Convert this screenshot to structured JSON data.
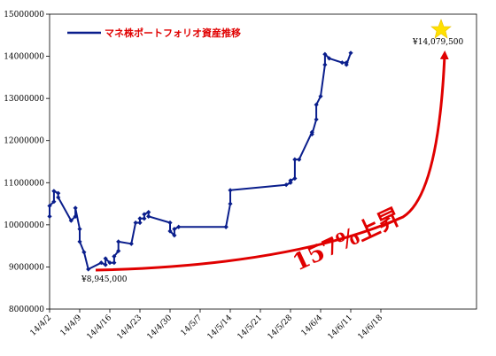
{
  "chart_data": {
    "type": "line",
    "legend": "マネ株ポートフォリオ資産推移",
    "legend_position": "top-left",
    "ylim": [
      8000000,
      15000000
    ],
    "y_ticks": [
      "15000000",
      "14000000",
      "13000000",
      "12000000",
      "11000000",
      "10000000",
      "9000000",
      "8000000"
    ],
    "x_ticks": [
      "14/4/2",
      "14/4/9",
      "14/4/16",
      "14/4/23",
      "14/4/30",
      "14/5/7",
      "14/5/14",
      "14/5/21",
      "14/5/28",
      "14/6/4",
      "14/6/11",
      "14/6/18"
    ],
    "color": "#0a1e8c",
    "series": [
      {
        "x": [
          "2014-04-02",
          "2014-04-02",
          "2014-04-03",
          "2014-04-03",
          "2014-04-04",
          "2014-04-04",
          "2014-04-07",
          "2014-04-08",
          "2014-04-08",
          "2014-04-09",
          "2014-04-09",
          "2014-04-10",
          "2014-04-11",
          "2014-04-14",
          "2014-04-15",
          "2014-04-15",
          "2014-04-16",
          "2014-04-17",
          "2014-04-17",
          "2014-04-18",
          "2014-04-18",
          "2014-04-21",
          "2014-04-22",
          "2014-04-23",
          "2014-04-23",
          "2014-04-24",
          "2014-04-24",
          "2014-04-25",
          "2014-04-25",
          "2014-04-30",
          "2014-04-30",
          "2014-05-01",
          "2014-05-01",
          "2014-05-02",
          "2014-05-13",
          "2014-05-13",
          "2014-05-14",
          "2014-05-14",
          "2014-05-27",
          "2014-05-28",
          "2014-05-28",
          "2014-05-29",
          "2014-05-29",
          "2014-05-30",
          "2014-06-02",
          "2014-06-02",
          "2014-06-03",
          "2014-06-03",
          "2014-06-04",
          "2014-06-05",
          "2014-06-05",
          "2014-06-06",
          "2014-06-09",
          "2014-06-10",
          "2014-06-10",
          "2014-06-11"
        ],
        "y": [
          10200000,
          10450000,
          10550000,
          10800000,
          10750000,
          10650000,
          10100000,
          10200000,
          10400000,
          9900000,
          9600000,
          9350000,
          8945000,
          9100000,
          9050000,
          9200000,
          9100000,
          9100000,
          9250000,
          9380000,
          9600000,
          9550000,
          10050000,
          10050000,
          10150000,
          10150000,
          10250000,
          10300000,
          10200000,
          10050000,
          9850000,
          9750000,
          9900000,
          9950000,
          9950000,
          9950000,
          10500000,
          10820000,
          10950000,
          11000000,
          11050000,
          11100000,
          11550000,
          11550000,
          12200000,
          12150000,
          12500000,
          12850000,
          13050000,
          13800000,
          14050000,
          13950000,
          13850000,
          13850000,
          13800000,
          14079500
        ]
      }
    ],
    "annotations": {
      "min_label": "¥8,945,000",
      "max_label": "¥14,079,500",
      "growth": "157%上昇"
    }
  }
}
